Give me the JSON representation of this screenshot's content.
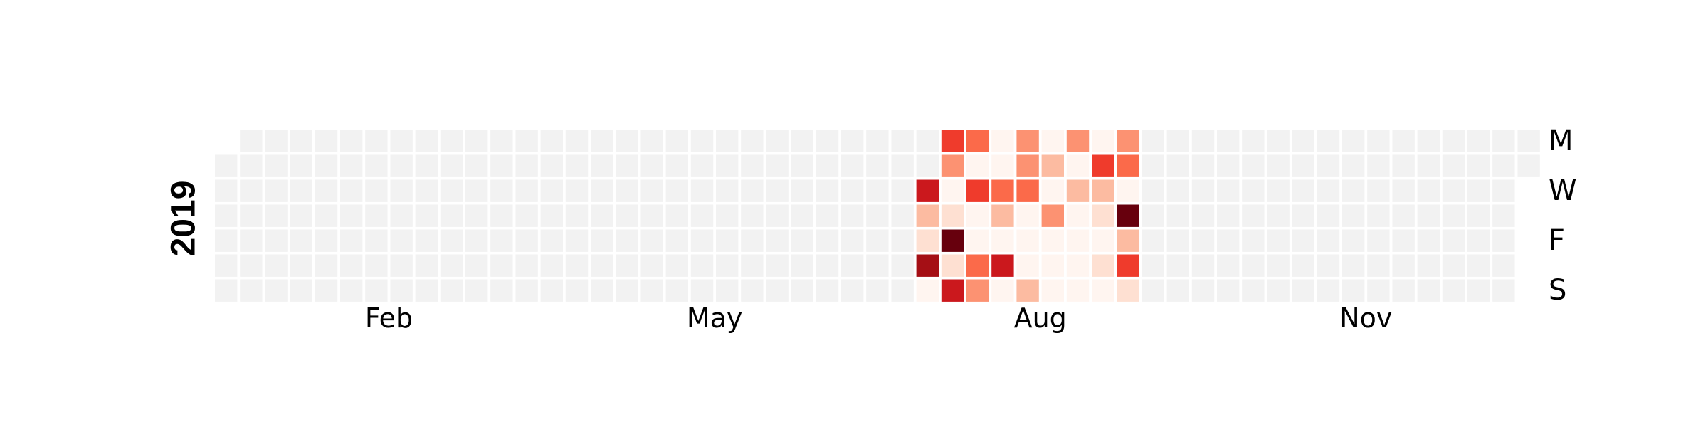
{
  "chart_data": {
    "type": "heatmap",
    "title": "",
    "year_label": "2019",
    "month_ticks": [
      {
        "label": "Feb",
        "week": 6.5
      },
      {
        "label": "May",
        "week": 19.5
      },
      {
        "label": "Aug",
        "week": 32.5
      },
      {
        "label": "Nov",
        "week": 45.5
      }
    ],
    "day_ticks": [
      {
        "label": "M",
        "day": 0
      },
      {
        "label": "W",
        "day": 2
      },
      {
        "label": "F",
        "day": 4
      },
      {
        "label": "S",
        "day": 6
      }
    ],
    "weeks": 53,
    "days_per_week": 7,
    "empty_cells": [
      {
        "week": 0,
        "day": 0
      },
      {
        "week": 52,
        "day": 2
      },
      {
        "week": 52,
        "day": 3
      },
      {
        "week": 52,
        "day": 4
      },
      {
        "week": 52,
        "day": 5
      },
      {
        "week": 52,
        "day": 6
      }
    ],
    "colormap": [
      "#fff5f0",
      "#fee0d2",
      "#fcbba1",
      "#fc9272",
      "#fb6a4a",
      "#ef3b2c",
      "#cb181d",
      "#a50f15",
      "#67000d"
    ],
    "no_data_color": "#f2f2f2",
    "value_range": [
      0,
      1
    ],
    "active_cells": [
      {
        "week": 28,
        "values": [
          null,
          null,
          0.72,
          0.3,
          0.18,
          0.82,
          0.03
        ]
      },
      {
        "week": 29,
        "values": [
          0.62,
          0.4,
          0.03,
          0.18,
          1.0,
          0.18,
          0.8
        ]
      },
      {
        "week": 30,
        "values": [
          0.45,
          0.02,
          0.65,
          0.04,
          0.04,
          0.5,
          0.38
        ]
      },
      {
        "week": 31,
        "values": [
          0.04,
          0.03,
          0.48,
          0.2,
          0.03,
          0.78,
          0.03
        ]
      },
      {
        "week": 32,
        "values": [
          0.4,
          0.4,
          0.55,
          0.04,
          0.04,
          0.03,
          0.25
        ]
      },
      {
        "week": 33,
        "values": [
          0.04,
          0.3,
          0.04,
          0.35,
          0.06,
          0.05,
          0.06
        ]
      },
      {
        "week": 34,
        "values": [
          0.4,
          0.04,
          0.3,
          0.05,
          0.05,
          0.06,
          0.05
        ]
      },
      {
        "week": 35,
        "values": [
          0.06,
          0.65,
          0.3,
          0.15,
          0.05,
          0.12,
          0.06
        ]
      },
      {
        "week": 36,
        "values": [
          0.35,
          0.5,
          0.04,
          1.0,
          0.25,
          0.68,
          0.1
        ]
      }
    ]
  }
}
